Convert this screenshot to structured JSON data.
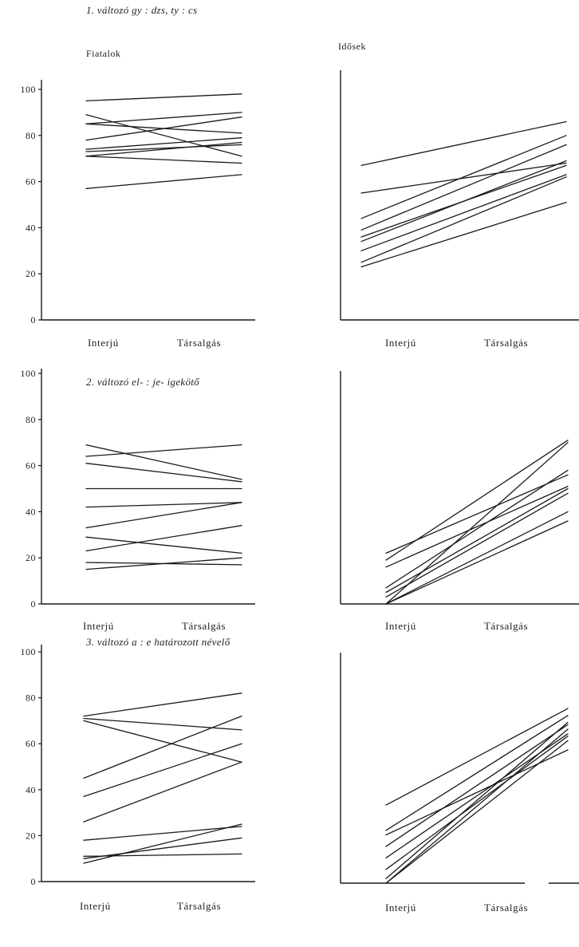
{
  "figure": {
    "line_color": "#1a1a1a",
    "group_labels": [
      "Fiatalok",
      "Idősek"
    ]
  },
  "chart_data": [
    {
      "type": "line",
      "title": "1. változó gy : dzs,   ty : cs",
      "group": "Fiatalok",
      "categories": [
        "Interjú",
        "Társalgás"
      ],
      "ylim": [
        0,
        100
      ],
      "yticks": [
        0,
        20,
        40,
        60,
        80,
        100
      ],
      "series": [
        {
          "values": [
            95,
            98
          ]
        },
        {
          "values": [
            89,
            71
          ]
        },
        {
          "values": [
            85,
            90
          ]
        },
        {
          "values": [
            85,
            81
          ]
        },
        {
          "values": [
            78,
            88
          ]
        },
        {
          "values": [
            74,
            79
          ]
        },
        {
          "values": [
            73,
            76
          ]
        },
        {
          "values": [
            71,
            68
          ]
        },
        {
          "values": [
            71,
            77
          ]
        },
        {
          "values": [
            57,
            63
          ]
        }
      ]
    },
    {
      "type": "line",
      "title": "",
      "group": "Idősek",
      "categories": [
        "Interjú",
        "Társalgás"
      ],
      "ylim": [
        0,
        100
      ],
      "series": [
        {
          "values": [
            67,
            86
          ]
        },
        {
          "values": [
            55,
            68
          ]
        },
        {
          "values": [
            44,
            80
          ]
        },
        {
          "values": [
            39,
            76
          ]
        },
        {
          "values": [
            36,
            67
          ]
        },
        {
          "values": [
            34,
            69
          ]
        },
        {
          "values": [
            30,
            63
          ]
        },
        {
          "values": [
            25,
            62
          ]
        },
        {
          "values": [
            23,
            51
          ]
        }
      ]
    },
    {
      "type": "line",
      "title": "2. változó el- : je- igekötő",
      "group": "Fiatalok",
      "categories": [
        "Interjú",
        "Társalgás"
      ],
      "ylim": [
        0,
        100
      ],
      "yticks": [
        0,
        20,
        40,
        60,
        80,
        100
      ],
      "series": [
        {
          "values": [
            69,
            54
          ]
        },
        {
          "values": [
            64,
            69
          ]
        },
        {
          "values": [
            61,
            53
          ]
        },
        {
          "values": [
            50,
            50
          ]
        },
        {
          "values": [
            42,
            44
          ]
        },
        {
          "values": [
            33,
            44
          ]
        },
        {
          "values": [
            29,
            22
          ]
        },
        {
          "values": [
            23,
            34
          ]
        },
        {
          "values": [
            18,
            17
          ]
        },
        {
          "values": [
            15,
            20
          ]
        }
      ]
    },
    {
      "type": "line",
      "title": "",
      "group": "Idősek",
      "categories": [
        "Interjú",
        "Társalgás"
      ],
      "ylim": [
        0,
        100
      ],
      "series": [
        {
          "values": [
            22,
            56
          ]
        },
        {
          "values": [
            19,
            71
          ]
        },
        {
          "values": [
            16,
            51
          ]
        },
        {
          "values": [
            7,
            58
          ]
        },
        {
          "values": [
            5,
            50
          ]
        },
        {
          "values": [
            3,
            48
          ]
        },
        {
          "values": [
            0,
            70
          ]
        },
        {
          "values": [
            0,
            40
          ]
        },
        {
          "values": [
            0,
            36
          ]
        }
      ]
    },
    {
      "type": "line",
      "title": "3. változó a : e határozott névelő",
      "group": "Fiatalok",
      "categories": [
        "Interjú",
        "Társalgás"
      ],
      "ylim": [
        0,
        100
      ],
      "yticks": [
        0,
        20,
        40,
        60,
        80,
        100
      ],
      "series": [
        {
          "values": [
            72,
            82
          ]
        },
        {
          "values": [
            71,
            66
          ]
        },
        {
          "values": [
            70,
            52
          ]
        },
        {
          "values": [
            45,
            72
          ]
        },
        {
          "values": [
            37,
            60
          ]
        },
        {
          "values": [
            26,
            52
          ]
        },
        {
          "values": [
            18,
            24
          ]
        },
        {
          "values": [
            11,
            12
          ]
        },
        {
          "values": [
            10,
            19
          ]
        },
        {
          "values": [
            8,
            25
          ]
        }
      ]
    },
    {
      "type": "line",
      "title": "",
      "group": "Idősek",
      "categories": [
        "Interjú",
        "Társalgás"
      ],
      "ylim": [
        0,
        100
      ],
      "series": [
        {
          "values": [
            34,
            76
          ]
        },
        {
          "values": [
            23,
            73
          ]
        },
        {
          "values": [
            21,
            58
          ]
        },
        {
          "values": [
            16,
            69
          ]
        },
        {
          "values": [
            11,
            65
          ]
        },
        {
          "values": [
            6,
            64
          ]
        },
        {
          "values": [
            2,
            70
          ]
        },
        {
          "values": [
            0,
            67
          ]
        },
        {
          "values": [
            0,
            62
          ]
        }
      ]
    }
  ]
}
